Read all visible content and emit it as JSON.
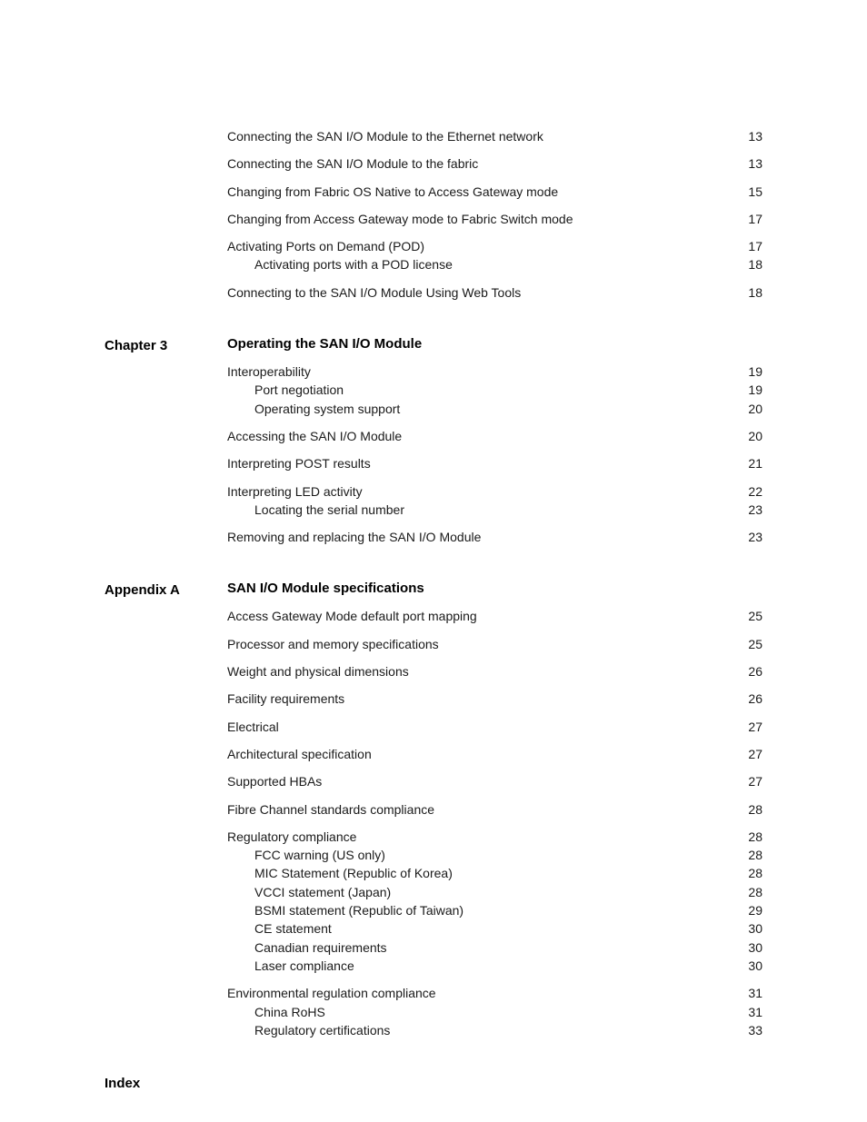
{
  "font": {
    "body_pt": 14,
    "heading_pt": 15,
    "color": "#000000",
    "bg": "#ffffff"
  },
  "continuation": {
    "entries": [
      {
        "type": "item",
        "text": "Connecting the SAN I/O Module to the Ethernet network",
        "page": "13"
      },
      {
        "type": "item",
        "text": "Connecting the SAN I/O Module to the fabric",
        "page": "13"
      },
      {
        "type": "item",
        "text": "Changing from Fabric OS Native to Access Gateway mode",
        "page": "15"
      },
      {
        "type": "item",
        "text": "Changing from Access Gateway mode to Fabric Switch mode",
        "page": "17"
      },
      {
        "type": "item",
        "text": "Activating Ports on Demand (POD)",
        "page": "17"
      },
      {
        "type": "sub",
        "text": "Activating ports with a POD license",
        "page": "18"
      },
      {
        "type": "item",
        "text": "Connecting to the SAN I/O Module Using Web Tools",
        "page": "18"
      }
    ]
  },
  "chapter3": {
    "label": "Chapter 3",
    "title": "Operating the SAN I/O Module",
    "entries": [
      {
        "type": "item",
        "text": "Interoperability",
        "page": "19"
      },
      {
        "type": "sub",
        "text": "Port negotiation",
        "page": "19"
      },
      {
        "type": "sub",
        "text": "Operating system support",
        "page": "20"
      },
      {
        "type": "item",
        "text": "Accessing the SAN I/O Module",
        "page": "20"
      },
      {
        "type": "item",
        "text": "Interpreting POST results",
        "page": "21"
      },
      {
        "type": "item",
        "text": "Interpreting LED activity",
        "page": "22"
      },
      {
        "type": "sub",
        "text": "Locating the serial number",
        "page": "23"
      },
      {
        "type": "item",
        "text": "Removing and replacing the SAN I/O Module",
        "page": "23"
      }
    ]
  },
  "appendixA": {
    "label": "Appendix A",
    "title": "SAN I/O Module specifications",
    "entries": [
      {
        "type": "item",
        "text": "Access Gateway Mode default port mapping",
        "page": "25"
      },
      {
        "type": "item",
        "text": "Processor and memory specifications",
        "page": "25"
      },
      {
        "type": "item",
        "text": "Weight and physical dimensions",
        "page": "26"
      },
      {
        "type": "item",
        "text": "Facility requirements",
        "page": "26"
      },
      {
        "type": "item",
        "text": "Electrical",
        "page": "27"
      },
      {
        "type": "item",
        "text": "Architectural specification",
        "page": "27"
      },
      {
        "type": "item",
        "text": "Supported HBAs",
        "page": "27"
      },
      {
        "type": "item",
        "text": "Fibre Channel standards compliance",
        "page": "28"
      },
      {
        "type": "item",
        "text": "Regulatory compliance",
        "page": "28"
      },
      {
        "type": "sub",
        "text": "FCC warning (US only)",
        "page": "28"
      },
      {
        "type": "sub",
        "text": "MIC Statement (Republic of Korea)",
        "page": "28"
      },
      {
        "type": "sub",
        "text": "VCCI statement (Japan)",
        "page": "28"
      },
      {
        "type": "sub",
        "text": "BSMI statement (Republic of Taiwan)",
        "page": "29"
      },
      {
        "type": "sub",
        "text": "CE statement",
        "page": "30"
      },
      {
        "type": "sub",
        "text": "Canadian requirements",
        "page": "30"
      },
      {
        "type": "sub",
        "text": "Laser compliance",
        "page": "30"
      },
      {
        "type": "item",
        "text": "Environmental regulation compliance",
        "page": "31"
      },
      {
        "type": "sub",
        "text": "China RoHS",
        "page": "31"
      },
      {
        "type": "sub",
        "text": "Regulatory certifications",
        "page": "33"
      }
    ]
  },
  "index": {
    "label": "Index"
  }
}
